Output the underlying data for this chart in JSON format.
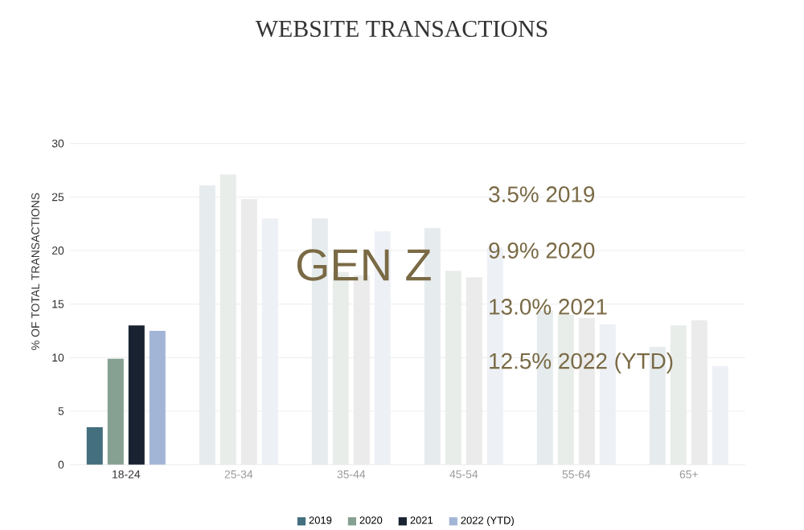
{
  "chart_data": {
    "type": "bar",
    "title": "WEBSITE TRANSACTIONS",
    "ylabel": "% OF TOTAL TRANSACTIONS",
    "categories": [
      "18-24",
      "25-34",
      "35-44",
      "45-54",
      "55-64",
      "65+"
    ],
    "series": [
      {
        "name": "2019",
        "color": "#436f7e",
        "colors": [
          "#436f7e",
          "#e6ecee",
          "#e6ecee",
          "#e6ecee",
          "#e6ecee",
          "#e6ecee"
        ],
        "values": [
          3.5,
          26.1,
          23.0,
          22.1,
          14.4,
          11.0
        ]
      },
      {
        "name": "2020",
        "color": "#86a092",
        "colors": [
          "#86a092",
          "#e8edea",
          "#e8edea",
          "#e8edea",
          "#e8edea",
          "#e8edea"
        ],
        "values": [
          9.9,
          27.1,
          18.0,
          18.1,
          14.0,
          13.0
        ]
      },
      {
        "name": "2021",
        "color": "#182230",
        "colors": [
          "#182230",
          "#ebebeb",
          "#ebebeb",
          "#ebebeb",
          "#ebebeb",
          "#ebebeb"
        ],
        "values": [
          13.0,
          24.8,
          17.7,
          17.5,
          13.7,
          13.5
        ]
      },
      {
        "name": "2022 (YTD)",
        "color": "#a3b5d6",
        "colors": [
          "#a3b5d6",
          "#edf0f5",
          "#edf0f5",
          "#edf0f5",
          "#edf0f5",
          "#edf0f5"
        ],
        "values": [
          12.5,
          23.0,
          21.8,
          20.3,
          13.1,
          9.2
        ]
      }
    ],
    "ylim": [
      0,
      30
    ],
    "yticks": [
      0,
      5,
      10,
      15,
      20,
      25,
      30
    ],
    "grid": "y",
    "legend": "bottom",
    "annotations": [
      "GEN Z",
      "3.5% 2019",
      "9.9% 2020",
      "13.0% 2021",
      "12.5% 2022 (YTD)"
    ]
  }
}
